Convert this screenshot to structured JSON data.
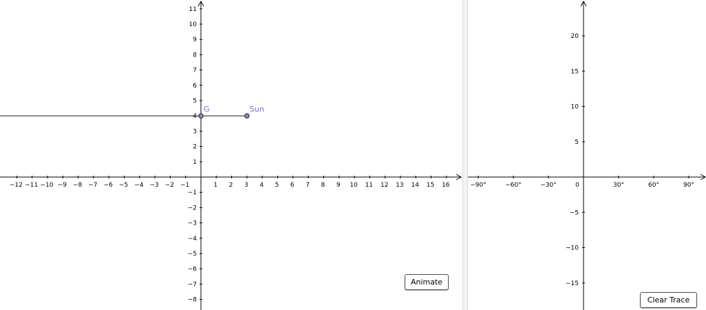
{
  "graphics_left": {
    "x_ticks": [
      -12,
      -11,
      -10,
      -9,
      -8,
      -7,
      -6,
      -5,
      -4,
      -3,
      -2,
      -1,
      1,
      2,
      3,
      4,
      5,
      6,
      7,
      8,
      9,
      10,
      11,
      12,
      13,
      14,
      15,
      16
    ],
    "y_ticks": [
      -8,
      -7,
      -6,
      -5,
      -4,
      -3,
      -2,
      -1,
      1,
      2,
      3,
      4,
      5,
      6,
      7,
      8,
      9,
      10,
      11
    ],
    "points": [
      {
        "label": "G",
        "x": 0,
        "y": 4
      },
      {
        "label": "Sun",
        "x": 3,
        "y": 4
      }
    ],
    "ray": {
      "from_x": 3,
      "y": 4,
      "direction": "left"
    },
    "animate_label": "Animate"
  },
  "graphics_right": {
    "x_ticks": [
      {
        "value": -90,
        "label": "−90°"
      },
      {
        "value": -60,
        "label": "−60°"
      },
      {
        "value": -30,
        "label": "−30°"
      },
      {
        "value": 30,
        "label": "30°"
      },
      {
        "value": 60,
        "label": "60°"
      },
      {
        "value": 90,
        "label": "90°"
      }
    ],
    "origin_label": "0",
    "y_ticks": [
      -15,
      -10,
      -5,
      5,
      10,
      15,
      20
    ],
    "clear_trace_label": "Clear Trace"
  },
  "colors": {
    "axis": "#000000",
    "point_fill": "#8a8ac7",
    "point_stroke": "#1a1a4d",
    "point_label": "#6f73c8",
    "line": "#333333"
  }
}
